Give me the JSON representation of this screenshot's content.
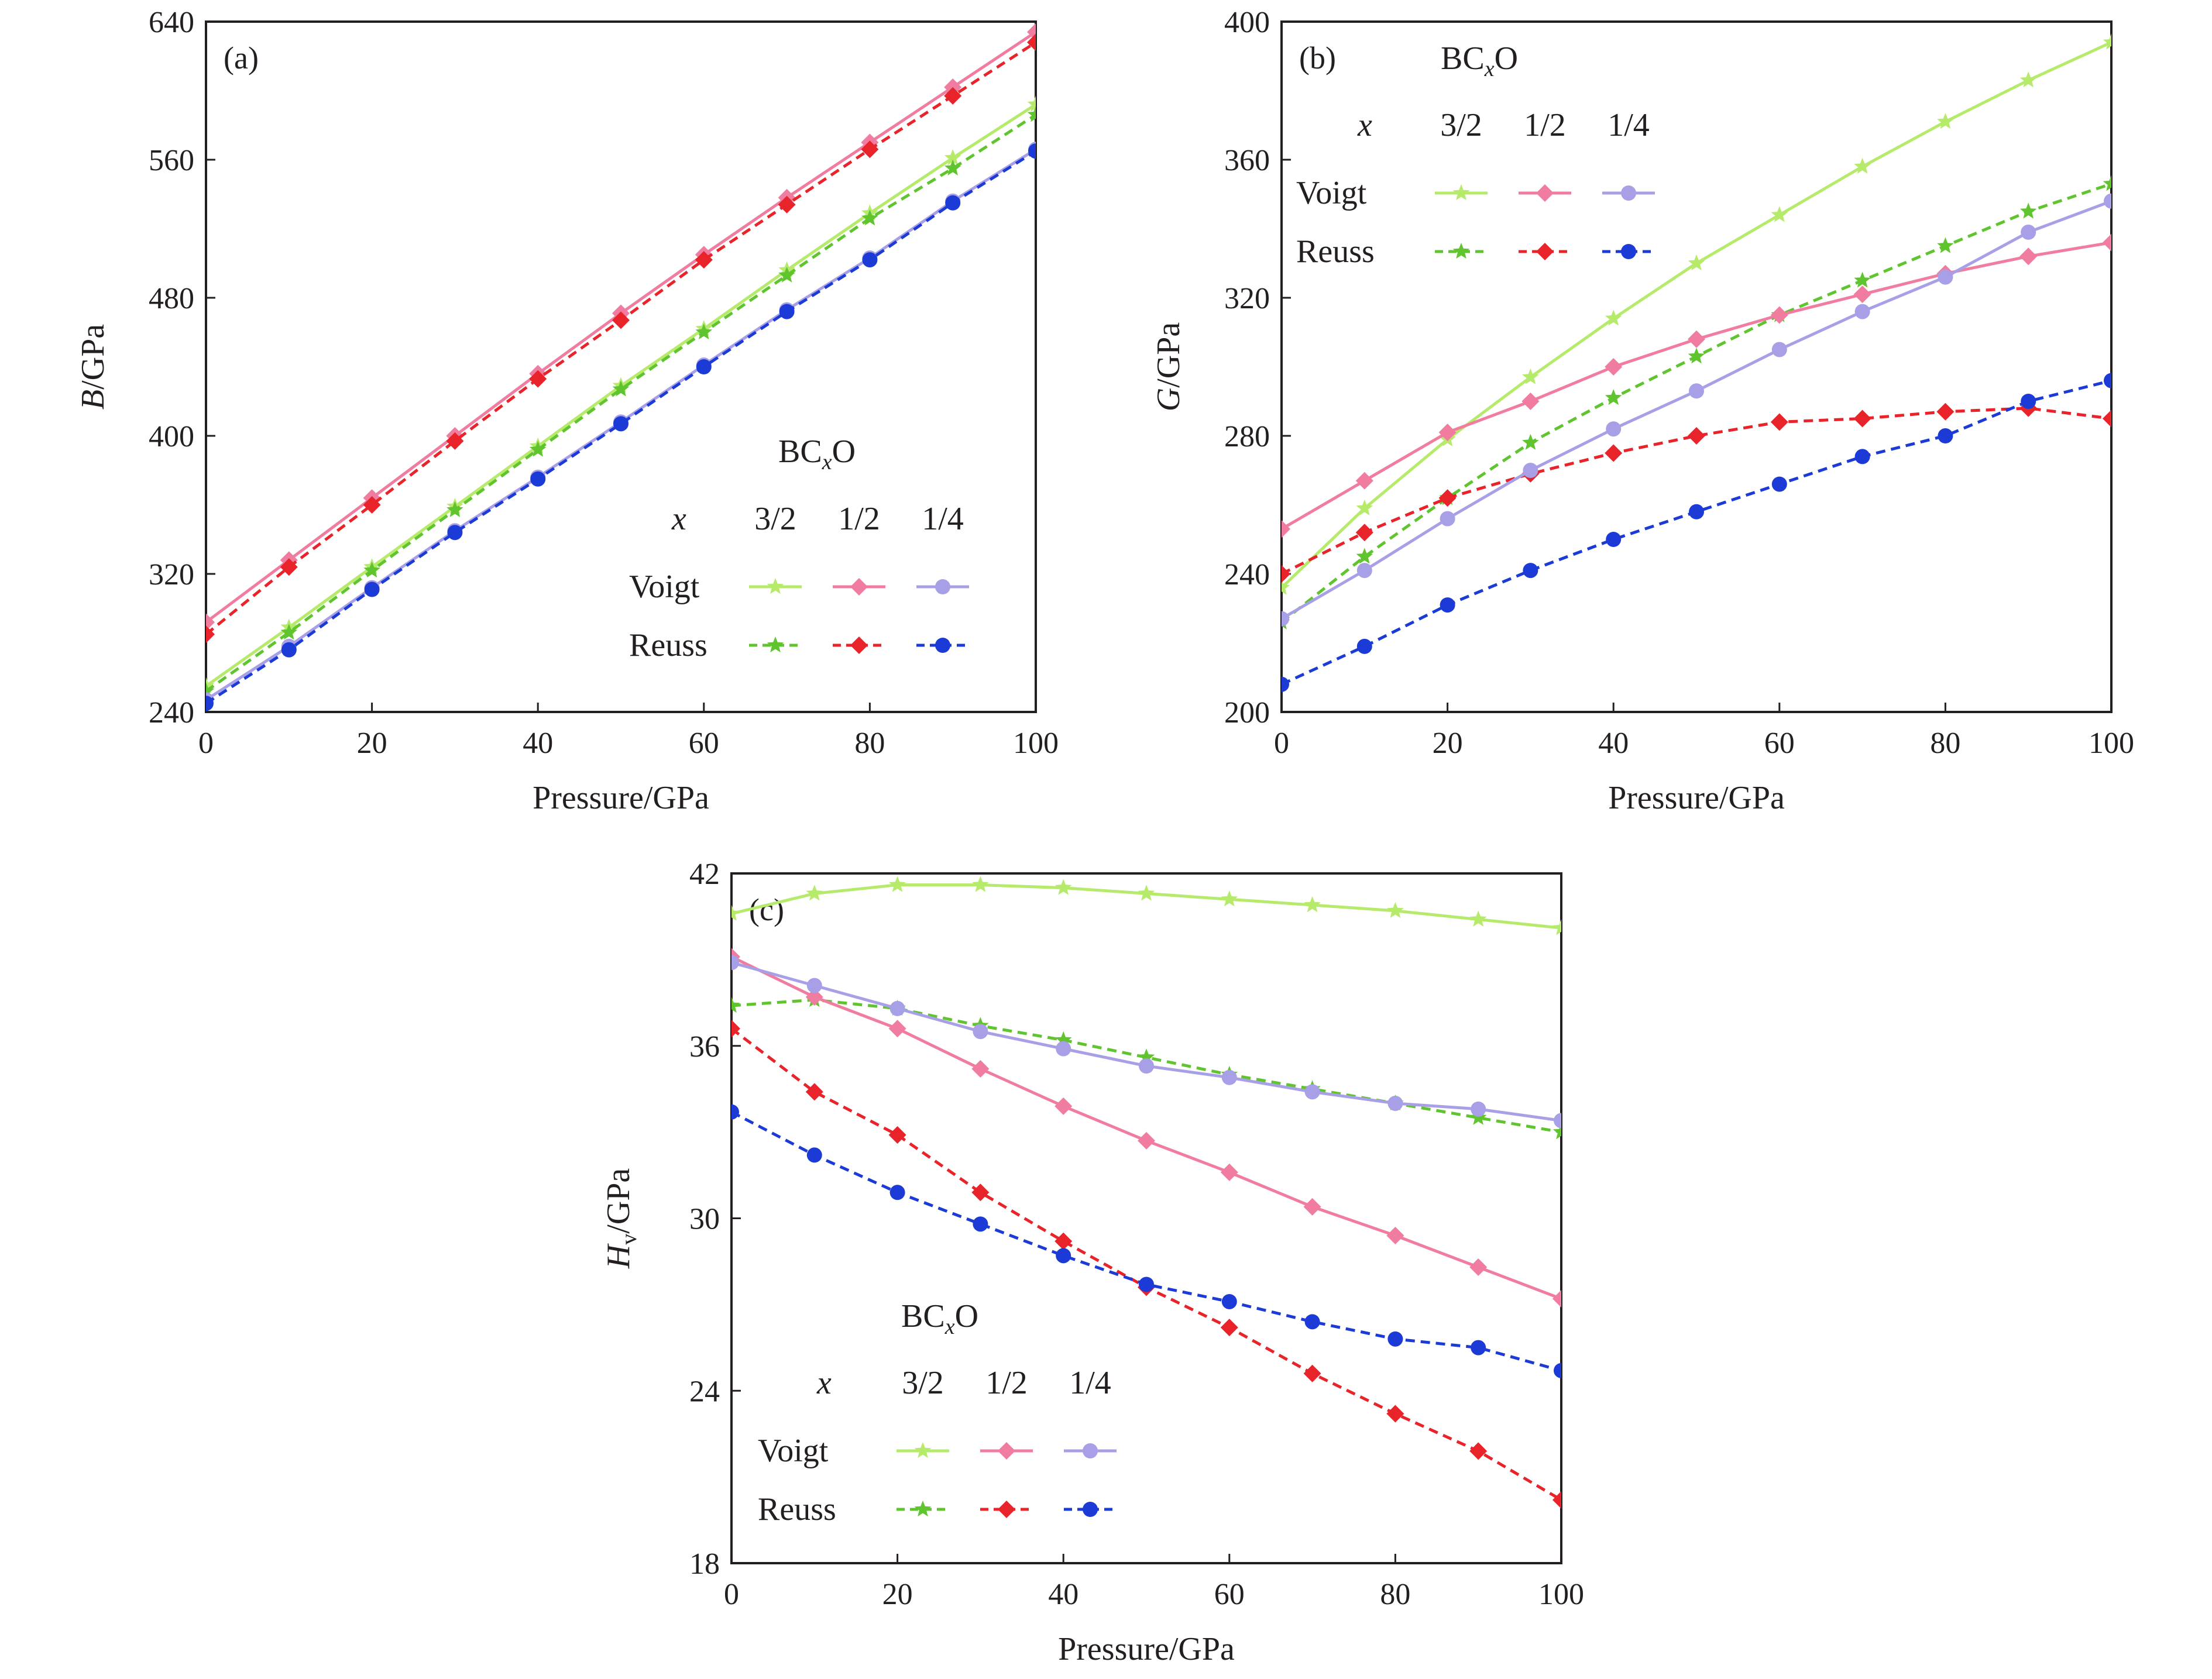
{
  "chart_data": [
    {
      "id": "a",
      "type": "line",
      "panel_label": "(a)",
      "xlabel": "Pressure/GPa",
      "ylabel_main": "B",
      "ylabel_unit": "/GPa",
      "xlim": [
        0,
        100
      ],
      "ylim": [
        240,
        640
      ],
      "xticks": [
        0,
        20,
        40,
        60,
        80,
        100
      ],
      "yticks": [
        240,
        320,
        400,
        480,
        560,
        640
      ],
      "x": [
        0,
        10,
        20,
        30,
        40,
        50,
        60,
        70,
        80,
        90,
        100
      ],
      "legend": {
        "title_main": "BC",
        "title_sub": "x",
        "title_end": "O",
        "header_label": "x",
        "columns": [
          "3/2",
          "1/2",
          "1/4"
        ],
        "rows": [
          "Voigt",
          "Reuss"
        ],
        "placement": "center-right"
      },
      "series": [
        {
          "method": "Voigt",
          "x_ratio": "3/2",
          "color": "#b5ea6a",
          "dash": "solid",
          "marker": "star",
          "values": [
            255,
            289,
            324,
            359,
            394,
            429,
            462,
            496,
            529,
            561,
            592
          ]
        },
        {
          "method": "Reuss",
          "x_ratio": "3/2",
          "color": "#5fc42d",
          "dash": "dashed",
          "marker": "star",
          "values": [
            252,
            286,
            322,
            357,
            392,
            427,
            460,
            493,
            526,
            555,
            586
          ]
        },
        {
          "method": "Voigt",
          "x_ratio": "1/2",
          "color": "#f07ca0",
          "dash": "solid",
          "marker": "diamond",
          "values": [
            292,
            328,
            364,
            400,
            436,
            471,
            505,
            538,
            570,
            602,
            634
          ]
        },
        {
          "method": "Reuss",
          "x_ratio": "1/2",
          "color": "#e8232a",
          "dash": "dashed",
          "marker": "diamond",
          "values": [
            285,
            324,
            360,
            397,
            433,
            467,
            502,
            534,
            566,
            597,
            628
          ]
        },
        {
          "method": "Voigt",
          "x_ratio": "1/4",
          "color": "#a8a0e6",
          "dash": "solid",
          "marker": "circle",
          "values": [
            247,
            278,
            312,
            345,
            376,
            408,
            441,
            473,
            503,
            536,
            566
          ]
        },
        {
          "method": "Reuss",
          "x_ratio": "1/4",
          "color": "#1c3bd6",
          "dash": "dashed",
          "marker": "circle",
          "values": [
            245,
            276,
            311,
            344,
            375,
            407,
            440,
            472,
            502,
            535,
            565
          ]
        }
      ]
    },
    {
      "id": "b",
      "type": "line",
      "panel_label": "(b)",
      "xlabel": "Pressure/GPa",
      "ylabel_main": "G",
      "ylabel_unit": "/GPa",
      "xlim": [
        0,
        100
      ],
      "ylim": [
        200,
        400
      ],
      "xticks": [
        0,
        20,
        40,
        60,
        80,
        100
      ],
      "yticks": [
        200,
        240,
        280,
        320,
        360,
        400
      ],
      "x": [
        0,
        10,
        20,
        30,
        40,
        50,
        60,
        70,
        80,
        90,
        100
      ],
      "legend": {
        "title_main": "BC",
        "title_sub": "x",
        "title_end": "O",
        "header_label": "x",
        "columns": [
          "3/2",
          "1/2",
          "1/4"
        ],
        "rows": [
          "Voigt",
          "Reuss"
        ],
        "placement": "top-left"
      },
      "series": [
        {
          "method": "Voigt",
          "x_ratio": "3/2",
          "color": "#b5ea6a",
          "dash": "solid",
          "marker": "star",
          "values": [
            236,
            259,
            279,
            297,
            314,
            330,
            344,
            358,
            371,
            383,
            394
          ]
        },
        {
          "method": "Reuss",
          "x_ratio": "3/2",
          "color": "#5fc42d",
          "dash": "dashed",
          "marker": "star",
          "values": [
            226,
            245,
            262,
            278,
            291,
            303,
            315,
            325,
            335,
            345,
            353
          ]
        },
        {
          "method": "Voigt",
          "x_ratio": "1/2",
          "color": "#f07ca0",
          "dash": "solid",
          "marker": "diamond",
          "values": [
            253,
            267,
            281,
            290,
            300,
            308,
            315,
            321,
            327,
            332,
            336
          ]
        },
        {
          "method": "Reuss",
          "x_ratio": "1/2",
          "color": "#e8232a",
          "dash": "dashed",
          "marker": "diamond",
          "values": [
            240,
            252,
            262,
            269,
            275,
            280,
            284,
            285,
            287,
            288,
            285
          ]
        },
        {
          "method": "Voigt",
          "x_ratio": "1/4",
          "color": "#a8a0e6",
          "dash": "solid",
          "marker": "circle",
          "values": [
            227,
            241,
            256,
            270,
            282,
            293,
            305,
            316,
            326,
            339,
            348
          ]
        },
        {
          "method": "Reuss",
          "x_ratio": "1/4",
          "color": "#1c3bd6",
          "dash": "dashed",
          "marker": "circle",
          "values": [
            208,
            219,
            231,
            241,
            250,
            258,
            266,
            274,
            280,
            290,
            296
          ]
        }
      ]
    },
    {
      "id": "c",
      "type": "line",
      "panel_label": "(c)",
      "xlabel": "Pressure/GPa",
      "ylabel_main": "H",
      "ylabel_sub": "v",
      "ylabel_unit": "/GPa",
      "xlim": [
        0,
        100
      ],
      "ylim": [
        18,
        42
      ],
      "xticks": [
        0,
        20,
        40,
        60,
        80,
        100
      ],
      "yticks": [
        18,
        24,
        30,
        36,
        42
      ],
      "x": [
        0,
        10,
        20,
        30,
        40,
        50,
        60,
        70,
        80,
        90,
        100
      ],
      "legend": {
        "title_main": "BC",
        "title_sub": "x",
        "title_end": "O",
        "header_label": "x",
        "columns": [
          "3/2",
          "1/2",
          "1/4"
        ],
        "rows": [
          "Voigt",
          "Reuss"
        ],
        "placement": "bottom-left"
      },
      "series": [
        {
          "method": "Voigt",
          "x_ratio": "3/2",
          "color": "#b5ea6a",
          "dash": "solid",
          "marker": "star",
          "values": [
            40.6,
            41.3,
            41.6,
            41.6,
            41.5,
            41.3,
            41.1,
            40.9,
            40.7,
            40.4,
            40.1
          ]
        },
        {
          "method": "Reuss",
          "x_ratio": "3/2",
          "color": "#5fc42d",
          "dash": "dashed",
          "marker": "star",
          "values": [
            37.4,
            37.6,
            37.3,
            36.7,
            36.2,
            35.6,
            35.0,
            34.5,
            34.0,
            33.5,
            33.0
          ]
        },
        {
          "method": "Voigt",
          "x_ratio": "1/2",
          "color": "#f07ca0",
          "dash": "solid",
          "marker": "diamond",
          "values": [
            39.1,
            37.7,
            36.6,
            35.2,
            33.9,
            32.7,
            31.6,
            30.4,
            29.4,
            28.3,
            27.2
          ]
        },
        {
          "method": "Reuss",
          "x_ratio": "1/2",
          "color": "#e8232a",
          "dash": "dashed",
          "marker": "diamond",
          "values": [
            36.6,
            34.4,
            32.9,
            30.9,
            29.2,
            27.6,
            26.2,
            24.6,
            23.2,
            21.9,
            20.2
          ]
        },
        {
          "method": "Voigt",
          "x_ratio": "1/4",
          "color": "#a8a0e6",
          "dash": "solid",
          "marker": "circle",
          "values": [
            38.9,
            38.1,
            37.3,
            36.5,
            35.9,
            35.3,
            34.9,
            34.4,
            34.0,
            33.8,
            33.4
          ]
        },
        {
          "method": "Reuss",
          "x_ratio": "1/4",
          "color": "#1c3bd6",
          "dash": "dashed",
          "marker": "circle",
          "values": [
            33.7,
            32.2,
            30.9,
            29.8,
            28.7,
            27.7,
            27.1,
            26.4,
            25.8,
            25.5,
            24.7
          ]
        }
      ]
    }
  ]
}
